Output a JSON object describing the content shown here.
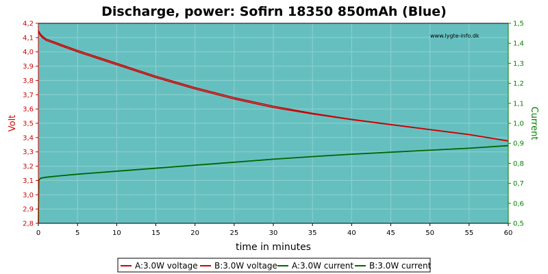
{
  "chart_data": {
    "type": "line",
    "title": "Discharge, power: Sofirn 18350 850mAh (Blue)",
    "watermark": "www.lygte-info.dk",
    "xlabel": "time in minutes",
    "ylabel_left": "Volt",
    "ylabel_right": "Current",
    "xlim": [
      0,
      60
    ],
    "ylim_left": [
      2.8,
      4.2
    ],
    "ylim_right": [
      0.5,
      1.5
    ],
    "x_ticks": [
      "0",
      "5",
      "10",
      "15",
      "20",
      "25",
      "30",
      "35",
      "40",
      "45",
      "50",
      "55",
      "60"
    ],
    "y_left_ticks": [
      "2,8",
      "2,9",
      "3,0",
      "3,1",
      "3,2",
      "3,3",
      "3,4",
      "3,5",
      "3,6",
      "3,7",
      "3,8",
      "3,9",
      "4,0",
      "4,1",
      "4,2"
    ],
    "y_right_ticks": [
      "0,5",
      "0,6",
      "0,7",
      "0,8",
      "0,9",
      "1,0",
      "1,1",
      "1,2",
      "1,3",
      "1,4",
      "1,5"
    ],
    "grid": true,
    "legend_position": "bottom",
    "colors": {
      "plot_bg": "#66BFBF",
      "grid": "#8fd0d0",
      "voltage": "#cc0000",
      "current": "#006600",
      "left_axis": "#cc0000",
      "right_axis": "#008000"
    },
    "series": [
      {
        "name": "A:3.0W voltage",
        "axis": "left",
        "color": "#cc0000",
        "x": [
          0,
          0.2,
          0.5,
          1,
          2,
          3,
          5,
          7.5,
          10,
          12.5,
          15,
          20,
          25,
          30,
          35,
          40,
          45,
          50,
          55,
          60
        ],
        "y": [
          4.14,
          4.12,
          4.1,
          4.08,
          4.06,
          4.04,
          4.0,
          3.955,
          3.91,
          3.865,
          3.82,
          3.74,
          3.67,
          3.61,
          3.565,
          3.525,
          3.49,
          3.455,
          3.42,
          3.375
        ]
      },
      {
        "name": "B:3.0W voltage",
        "axis": "left",
        "color": "#cc0000",
        "x": [
          0,
          0.2,
          0.5,
          1,
          2,
          3,
          5,
          7.5,
          10,
          12.5,
          15,
          20,
          25,
          30,
          35,
          40,
          45,
          50,
          55,
          60
        ],
        "y": [
          4.15,
          4.13,
          4.11,
          4.09,
          4.07,
          4.05,
          4.01,
          3.965,
          3.92,
          3.875,
          3.83,
          3.75,
          3.68,
          3.62,
          3.57,
          3.528,
          3.492,
          3.457,
          3.422,
          3.377
        ]
      },
      {
        "name": "A:3.0W current",
        "axis": "right",
        "color": "#006600",
        "x": [
          0,
          0.05,
          0.3,
          1,
          3,
          5,
          10,
          15,
          20,
          25,
          30,
          35,
          40,
          45,
          50,
          55,
          60
        ],
        "y": [
          0.5,
          0.715,
          0.725,
          0.73,
          0.738,
          0.745,
          0.76,
          0.775,
          0.79,
          0.805,
          0.82,
          0.833,
          0.845,
          0.855,
          0.865,
          0.875,
          0.888
        ]
      },
      {
        "name": "B:3.0W current",
        "axis": "right",
        "color": "#006600",
        "x": [
          0,
          0.05,
          0.3,
          1,
          3,
          5,
          10,
          15,
          20,
          25,
          30,
          35,
          40,
          45,
          50,
          55,
          60
        ],
        "y": [
          0.5,
          0.716,
          0.726,
          0.731,
          0.739,
          0.746,
          0.761,
          0.776,
          0.791,
          0.806,
          0.821,
          0.834,
          0.846,
          0.856,
          0.866,
          0.876,
          0.889
        ]
      }
    ],
    "legend": [
      {
        "label": "A:3.0W voltage",
        "color": "#cc0000"
      },
      {
        "label": "B:3.0W voltage",
        "color": "#cc0000"
      },
      {
        "label": "A:3.0W current",
        "color": "#006600"
      },
      {
        "label": "B:3.0W current",
        "color": "#006600"
      }
    ]
  }
}
